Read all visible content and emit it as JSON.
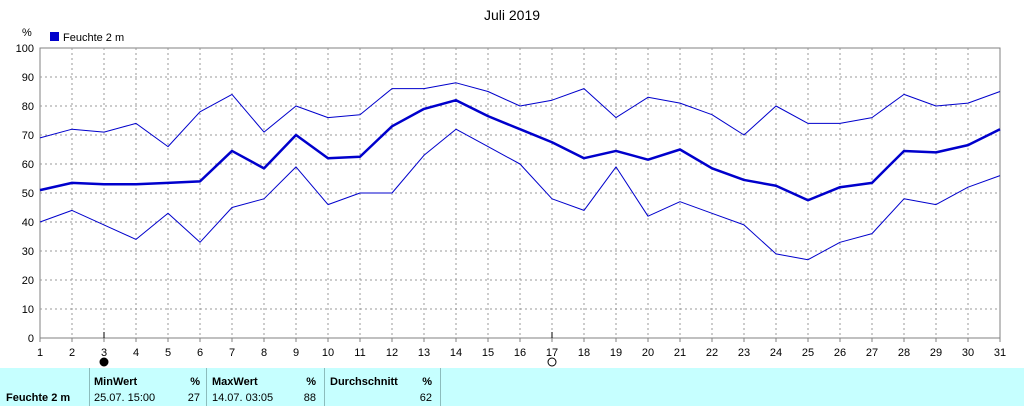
{
  "chart_data": {
    "type": "line",
    "title": "Juli 2019",
    "ylabel": "%",
    "legend": [
      "Feuchte  2 m"
    ],
    "ylim": [
      0,
      100
    ],
    "yticks": [
      0,
      10,
      20,
      30,
      40,
      50,
      60,
      70,
      80,
      90,
      100
    ],
    "x": [
      1,
      2,
      3,
      4,
      5,
      6,
      7,
      8,
      9,
      10,
      11,
      12,
      13,
      14,
      15,
      16,
      17,
      18,
      19,
      20,
      21,
      22,
      23,
      24,
      25,
      26,
      27,
      28,
      29,
      30,
      31
    ],
    "grid": true,
    "legend_position": "top-left",
    "series": [
      {
        "name": "Feuchte  2 m",
        "values": [
          51,
          53.5,
          53,
          53,
          53.5,
          54,
          64.5,
          58.5,
          70,
          62,
          62.5,
          73,
          79,
          82,
          76.5,
          72,
          67.5,
          62,
          64.5,
          61.5,
          65,
          58.5,
          54.5,
          52.5,
          47.5,
          52,
          53.5,
          64.5,
          64,
          66.5,
          72
        ]
      },
      {
        "values": [
          69,
          72,
          71,
          74,
          66,
          78,
          84,
          71,
          80,
          76,
          77,
          86,
          86,
          88,
          85,
          80,
          82,
          86,
          76,
          83,
          81,
          77,
          70,
          80,
          74,
          74,
          76,
          84,
          80,
          81,
          85
        ]
      },
      {
        "values": [
          40,
          44,
          39,
          34,
          43,
          33,
          45,
          48,
          59,
          46,
          50,
          50,
          63,
          72,
          66,
          60,
          48,
          44,
          59,
          42,
          47,
          43,
          39,
          29,
          27,
          33,
          36,
          48,
          46,
          52,
          56
        ]
      }
    ],
    "moon_phases": [
      {
        "day": 3,
        "phase": "new-moon"
      },
      {
        "day": 17,
        "phase": "full-moon"
      }
    ],
    "colors": {
      "series": "#0000cc",
      "grid": "#999999",
      "axis": "#808080",
      "panel": "#c6ffff"
    }
  },
  "stats": {
    "row_label": "Feuchte  2 m",
    "min": {
      "header": "MinWert",
      "unit": "%",
      "when": "25.07.  15:00",
      "value": "27"
    },
    "max": {
      "header": "MaxWert",
      "unit": "%",
      "when": "14.07.  03:05",
      "value": "88"
    },
    "avg": {
      "header": "Durchschnitt",
      "unit": "%",
      "value": "62"
    }
  }
}
